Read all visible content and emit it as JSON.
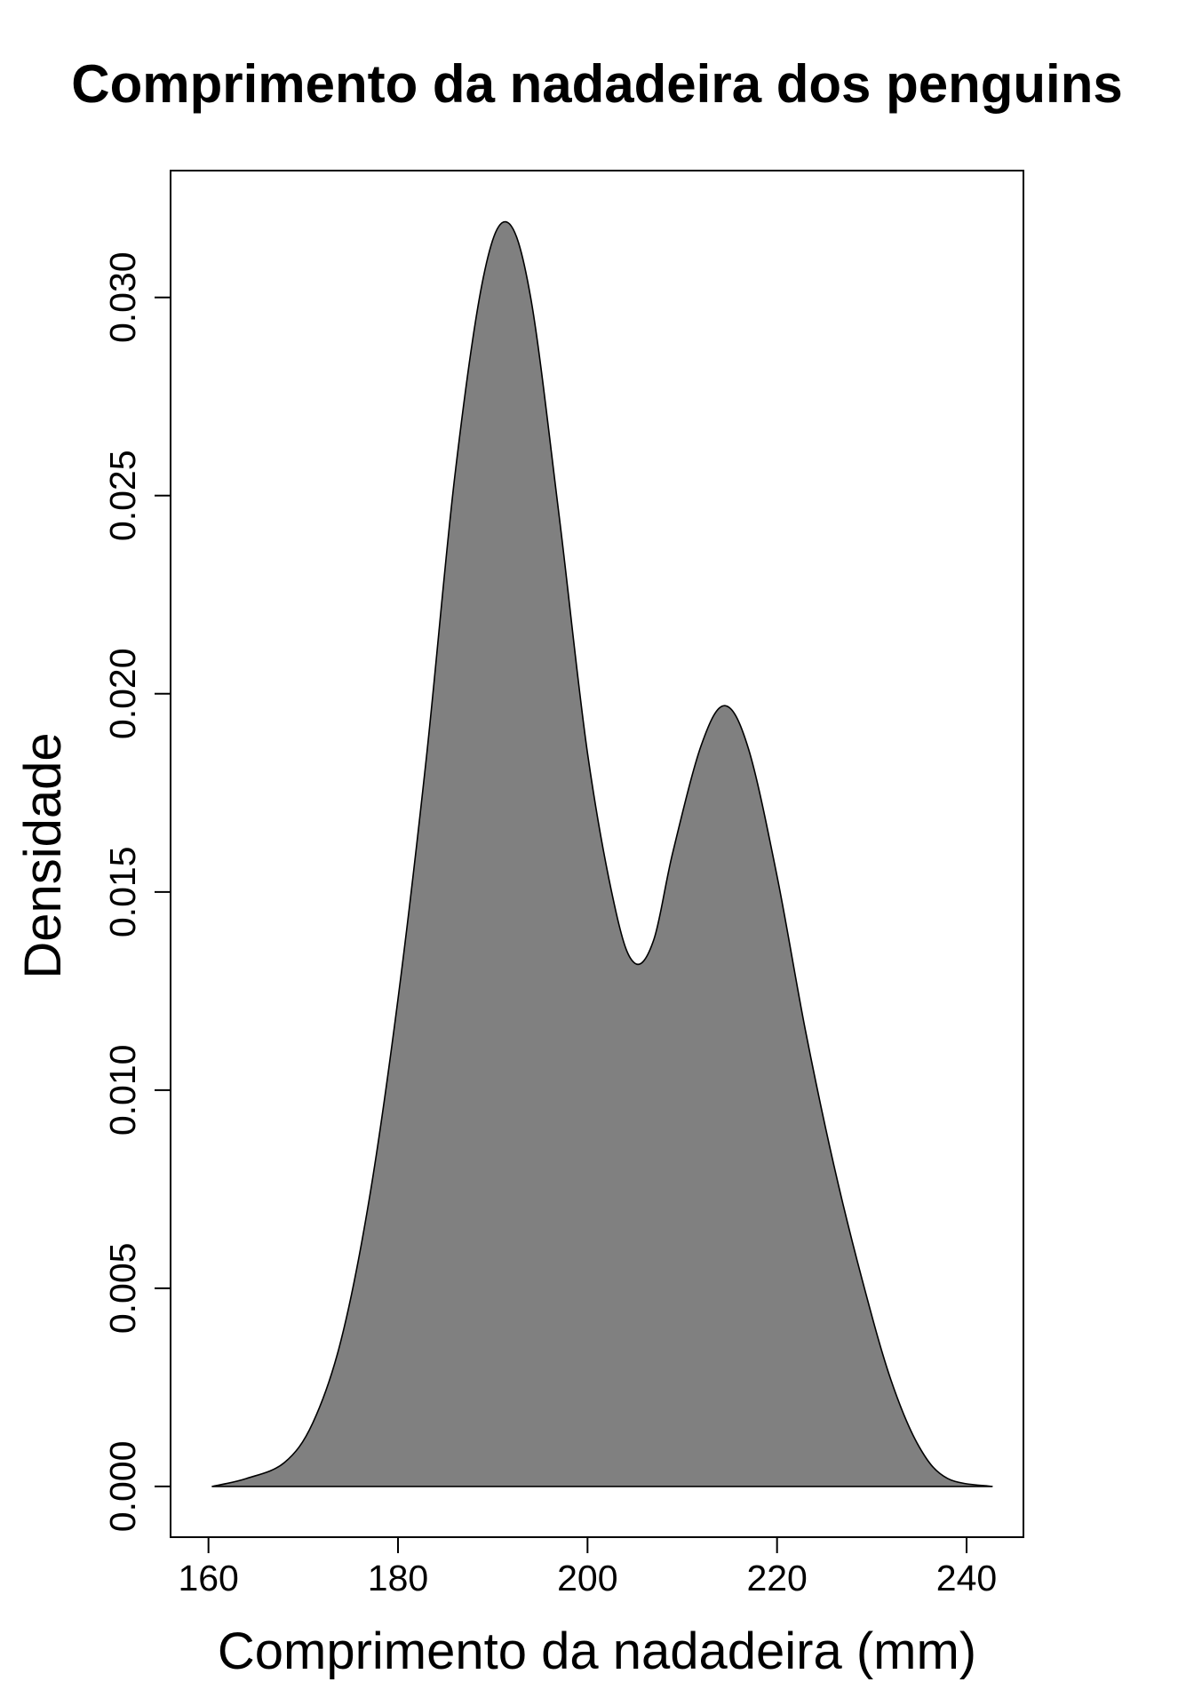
{
  "chart_data": {
    "type": "area",
    "title": "Comprimento da nadadeira dos penguins",
    "xlabel": "Comprimento da nadadeira (mm)",
    "ylabel": "Densidade",
    "xlim": [
      156,
      246
    ],
    "ylim": [
      -0.00128,
      0.0332
    ],
    "x_ticks": [
      160,
      180,
      200,
      220,
      240
    ],
    "x_tick_labels": [
      "160",
      "180",
      "200",
      "220",
      "240"
    ],
    "y_ticks": [
      0.0,
      0.005,
      0.01,
      0.015,
      0.02,
      0.025,
      0.03
    ],
    "y_tick_labels": [
      "0.000",
      "0.005",
      "0.010",
      "0.015",
      "0.020",
      "0.025",
      "0.030"
    ],
    "fill_color": "#808080",
    "line_color": "#000000",
    "grid": false,
    "legend": "none",
    "box": true,
    "x": [
      160.4,
      164,
      168,
      171,
      174,
      177,
      180,
      183,
      186,
      189,
      191.5,
      194,
      197,
      200,
      203,
      205,
      207,
      209,
      212,
      214.5,
      217,
      220,
      223,
      226,
      229,
      232,
      235,
      238,
      242.7
    ],
    "y": [
      0.0,
      0.0002,
      0.0006,
      0.0016,
      0.0037,
      0.0073,
      0.0123,
      0.0184,
      0.0255,
      0.0305,
      0.0319,
      0.03,
      0.0245,
      0.0185,
      0.0145,
      0.0132,
      0.0138,
      0.016,
      0.0187,
      0.0197,
      0.0186,
      0.0154,
      0.0115,
      0.0081,
      0.0052,
      0.0027,
      0.001,
      0.0002,
      0.0
    ]
  }
}
